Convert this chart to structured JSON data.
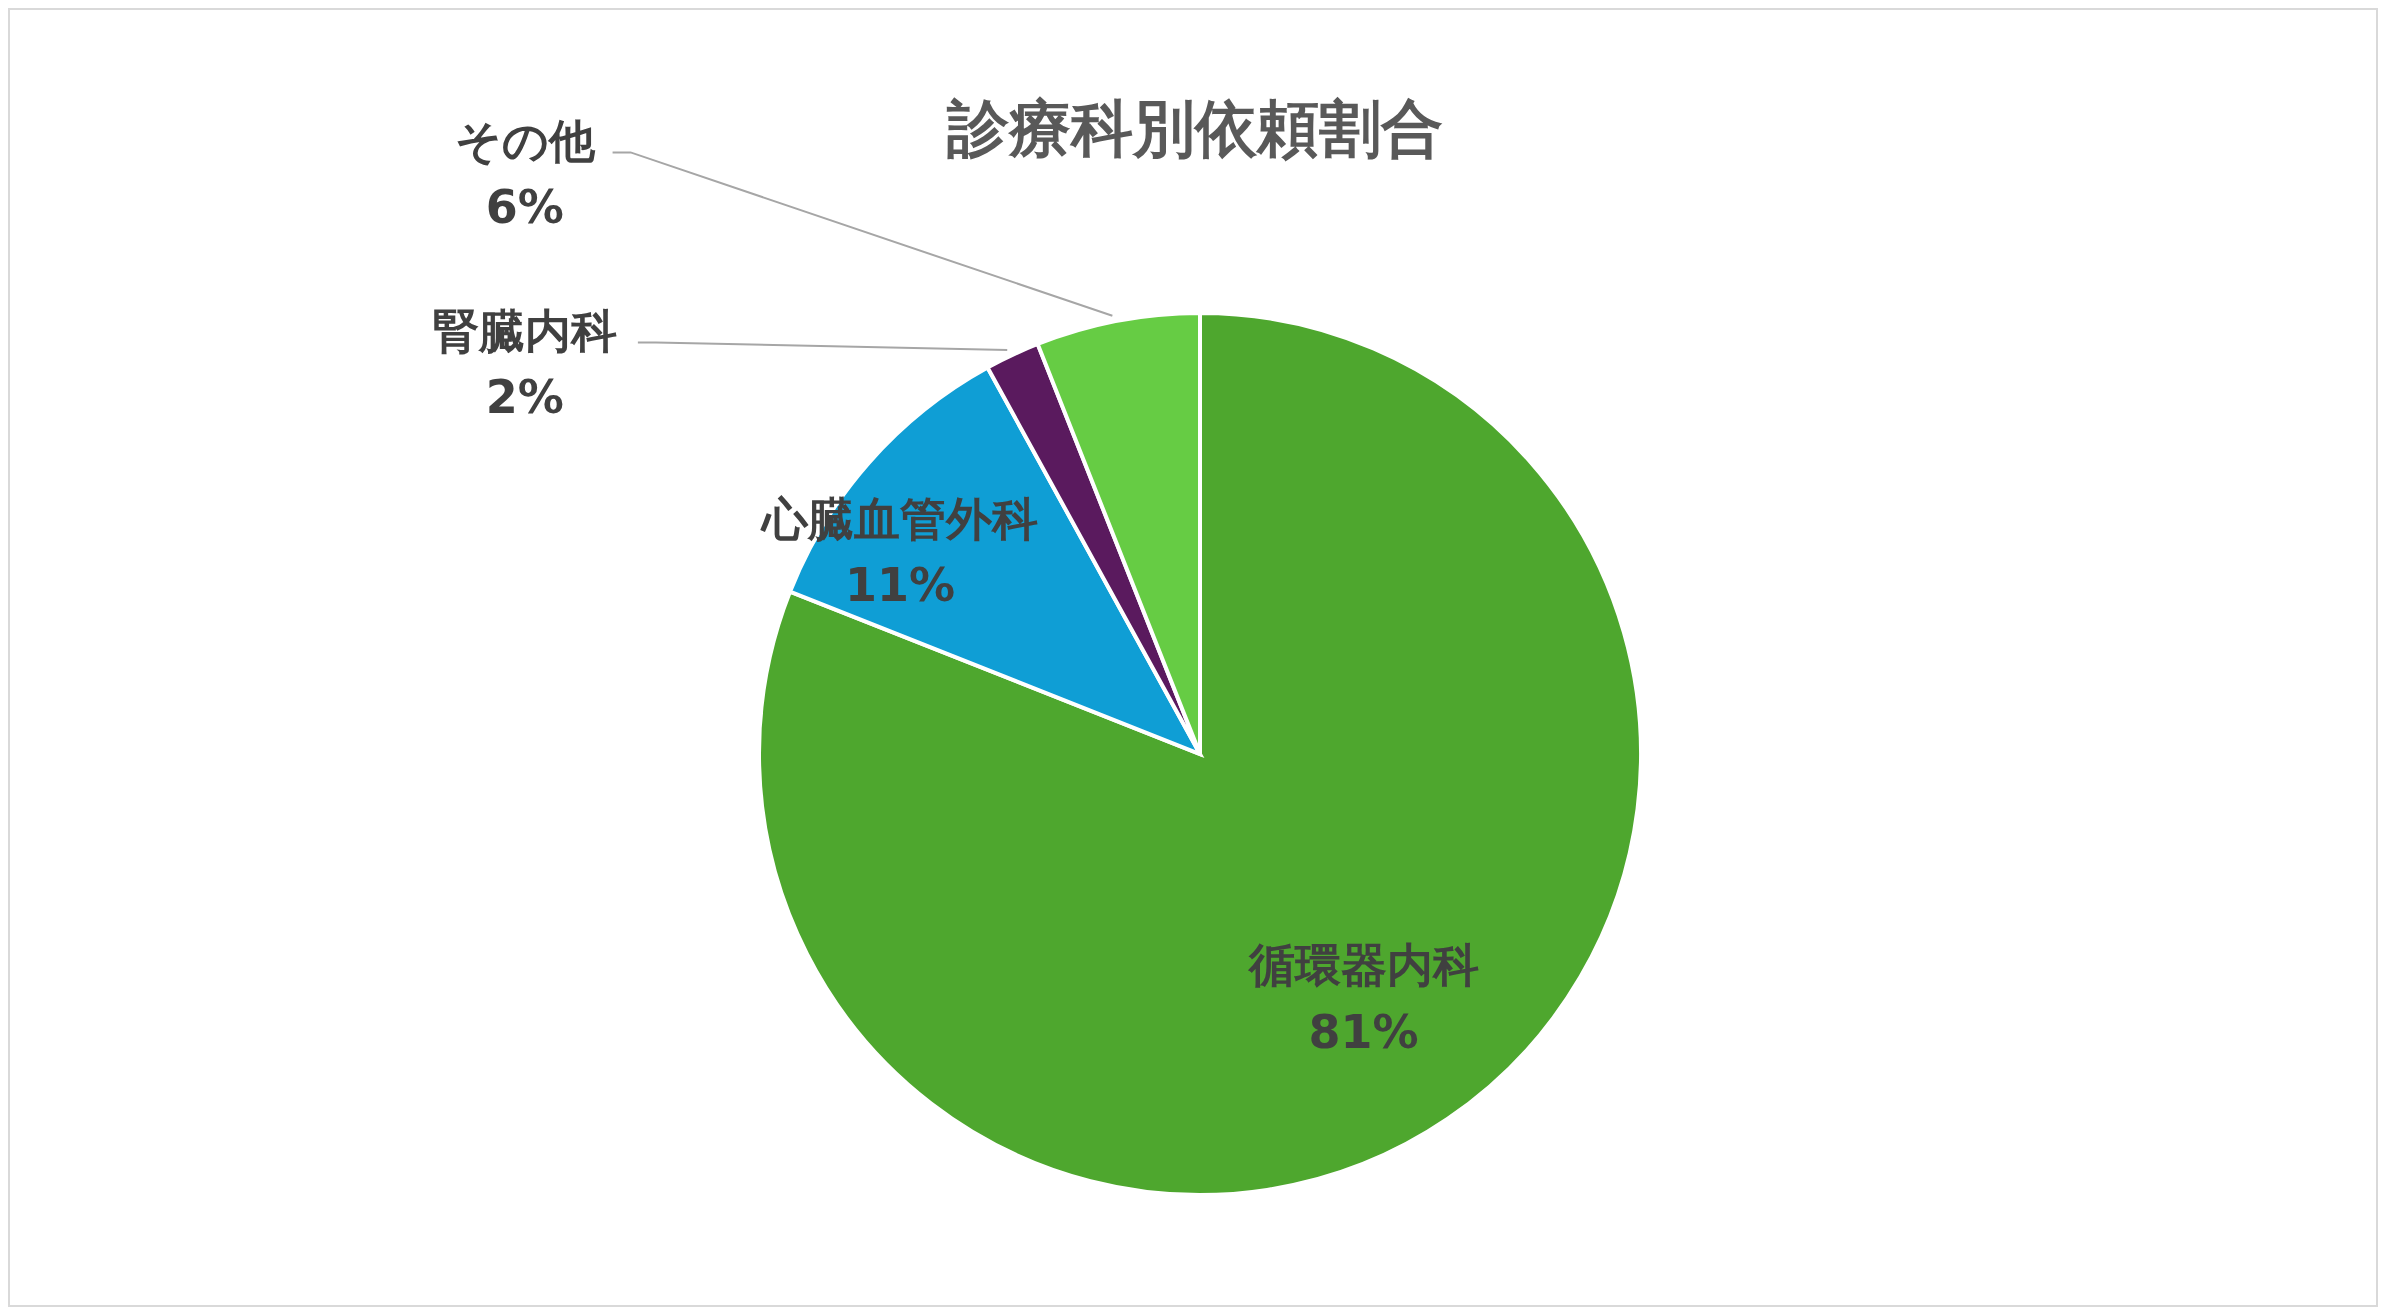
{
  "chart_data": {
    "type": "pie",
    "title": "診療科別依頼割合",
    "categories": [
      "循環器内科",
      "心臓血管外科",
      "腎臓内科",
      "その他"
    ],
    "values": [
      81,
      11,
      2,
      6
    ],
    "value_labels": [
      "81%",
      "11%",
      "2%",
      "6%"
    ],
    "colors": [
      "#4ea72e",
      "#0f9ed5",
      "#5a1a5e",
      "#66cc44"
    ],
    "legend": false
  }
}
